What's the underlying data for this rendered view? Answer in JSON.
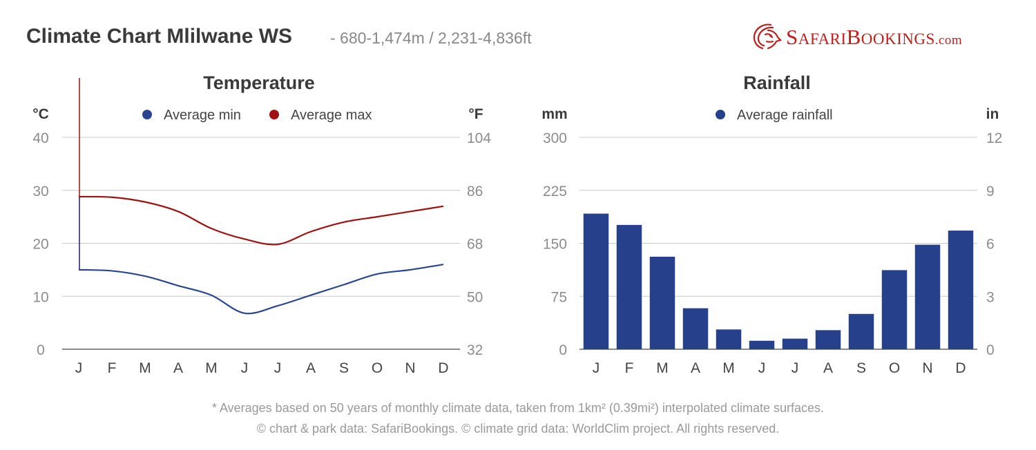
{
  "header": {
    "title": "Climate Chart Mlilwane WS",
    "subtitle": "- 680-1,474m / 2,231-4,836ft"
  },
  "brand": {
    "name_part1": "Safari",
    "name_part2": "Bookings",
    "suffix": ".com",
    "logo": "lion-head-logo",
    "color": "#c41b1b"
  },
  "colors": {
    "min_series": "#2a4590",
    "max_series": "#a01010",
    "bar": "#27408b",
    "grid": "#c8c8c8",
    "tick": "#8c8c8c",
    "axis_title": "#3a3a3a"
  },
  "chart_data": [
    {
      "type": "line",
      "title": "Temperature",
      "ylabel": "°C",
      "ylabel_right": "°F",
      "categories": [
        "J",
        "F",
        "M",
        "A",
        "M",
        "J",
        "J",
        "A",
        "S",
        "O",
        "N",
        "D"
      ],
      "ylim": [
        0,
        40
      ],
      "yticks": [
        "0",
        "10",
        "20",
        "30",
        "40"
      ],
      "yticks_right": [
        "32",
        "50",
        "68",
        "86",
        "104"
      ],
      "grid": true,
      "legend": "top-center",
      "series": [
        {
          "name": "Average min",
          "color": "#2a4590",
          "values": [
            15,
            14.8,
            13.8,
            12,
            10.2,
            6.8,
            8.2,
            10.2,
            12.2,
            14.2,
            15,
            16
          ]
        },
        {
          "name": "Average max",
          "color": "#a01010",
          "values": [
            28.8,
            28.7,
            27.8,
            26,
            22.8,
            20.8,
            19.8,
            22.2,
            24,
            25,
            26,
            27
          ]
        }
      ]
    },
    {
      "type": "bar",
      "title": "Rainfall",
      "ylabel": "mm",
      "ylabel_right": "in",
      "categories": [
        "J",
        "F",
        "M",
        "A",
        "M",
        "J",
        "J",
        "A",
        "S",
        "O",
        "N",
        "D"
      ],
      "ylim": [
        0,
        300
      ],
      "yticks": [
        "0",
        "75",
        "150",
        "225",
        "300"
      ],
      "yticks_right": [
        "0",
        "3",
        "6",
        "9",
        "12"
      ],
      "grid": true,
      "legend": "top-center",
      "series": [
        {
          "name": "Average rainfall",
          "color": "#27408b",
          "values": [
            192,
            176,
            131,
            58,
            28,
            12,
            15,
            27,
            50,
            112,
            148,
            168
          ]
        }
      ]
    }
  ],
  "footer": {
    "line1": "* Averages based on 50 years of monthly climate data, taken from 1km² (0.39mi²) interpolated climate surfaces.",
    "line2": "© chart & park data: SafariBookings. © climate grid data: WorldClim project. All rights reserved."
  }
}
